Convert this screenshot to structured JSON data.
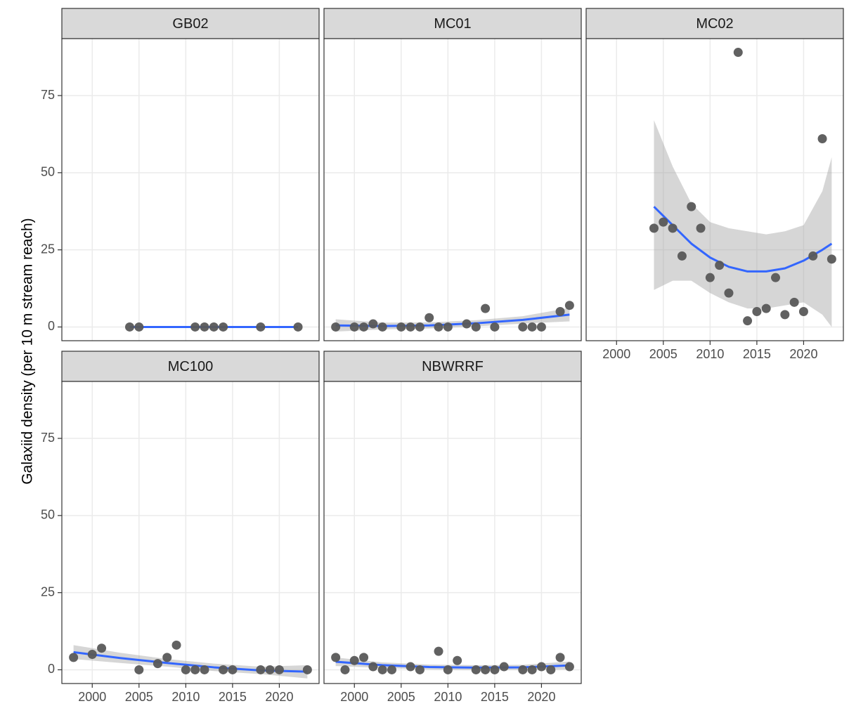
{
  "y_axis_title": "Galaxiid density (per 10 m stream reach)",
  "chart_data": [
    {
      "type": "scatter",
      "title": "GB02",
      "point_color": "#595959",
      "smooth_color": "#3366ff",
      "ribbon_color": "#999999",
      "grid": true,
      "x": [
        2004,
        2005,
        2011,
        2012,
        2013,
        2014,
        2018,
        2022
      ],
      "values": [
        0,
        0,
        0,
        0,
        0,
        0,
        0,
        0
      ],
      "smooth": {
        "x": [
          2004,
          2010,
          2016,
          2022
        ],
        "values": [
          0,
          0,
          0,
          0
        ]
      },
      "xlim": [
        1996.75,
        2024.25
      ],
      "ylim": [
        -4.45,
        93.45
      ],
      "xticks": [
        2000,
        2005,
        2010,
        2015,
        2020
      ],
      "yticks": [
        0,
        25,
        50,
        75
      ]
    },
    {
      "type": "scatter",
      "title": "MC01",
      "point_color": "#595959",
      "smooth_color": "#3366ff",
      "ribbon_color": "#999999",
      "grid": true,
      "x": [
        1998,
        2000,
        2001,
        2002,
        2003,
        2005,
        2006,
        2007,
        2008,
        2009,
        2010,
        2012,
        2013,
        2014,
        2015,
        2018,
        2019,
        2020,
        2022,
        2023
      ],
      "values": [
        0,
        0,
        0,
        1,
        0,
        0,
        0,
        0,
        3,
        0,
        0,
        1,
        0,
        6,
        0,
        0,
        0,
        0,
        5,
        7
      ],
      "smooth": {
        "x": [
          1998,
          2003,
          2008,
          2013,
          2018,
          2023
        ],
        "values": [
          0.5,
          0.3,
          0.5,
          1.2,
          2.3,
          4
        ],
        "lower": [
          -1.5,
          -0.8,
          -0.5,
          0.2,
          1.1,
          1.8
        ],
        "upper": [
          2.5,
          1.4,
          1.5,
          2.2,
          3.5,
          6.2
        ]
      },
      "xlim": [
        1996.75,
        2024.25
      ],
      "ylim": [
        -4.45,
        93.45
      ],
      "xticks": [
        2000,
        2005,
        2010,
        2015,
        2020
      ],
      "yticks": [
        0,
        25,
        50,
        75
      ]
    },
    {
      "type": "scatter",
      "title": "MC02",
      "point_color": "#595959",
      "smooth_color": "#3366ff",
      "ribbon_color": "#999999",
      "grid": true,
      "x": [
        2004,
        2005,
        2006,
        2007,
        2008,
        2009,
        2010,
        2011,
        2012,
        2013,
        2014,
        2015,
        2016,
        2017,
        2018,
        2019,
        2020,
        2021,
        2022,
        2023
      ],
      "values": [
        32,
        34,
        32,
        23,
        39,
        32,
        16,
        20,
        11,
        89,
        2,
        5,
        6,
        16,
        4,
        8,
        5,
        23,
        61,
        22
      ],
      "smooth": {
        "x": [
          2004,
          2006,
          2008,
          2010,
          2012,
          2014,
          2016,
          2018,
          2020,
          2022,
          2023
        ],
        "values": [
          39,
          33,
          27,
          22.5,
          19.5,
          18,
          18,
          19,
          21.5,
          25,
          27
        ],
        "lower": [
          12,
          15,
          15,
          11,
          8,
          6,
          6,
          7,
          8,
          4,
          0
        ],
        "upper": [
          67,
          52,
          40,
          34,
          32,
          31,
          30,
          31,
          33,
          44,
          55
        ]
      },
      "xlim": [
        1996.75,
        2024.25
      ],
      "ylim": [
        -4.45,
        93.45
      ],
      "xticks": [
        2000,
        2005,
        2010,
        2015,
        2020
      ],
      "yticks": [
        0,
        25,
        50,
        75
      ]
    },
    {
      "type": "scatter",
      "title": "MC100",
      "point_color": "#595959",
      "smooth_color": "#3366ff",
      "ribbon_color": "#999999",
      "grid": true,
      "x": [
        1998,
        2000,
        2001,
        2005,
        2007,
        2008,
        2009,
        2010,
        2011,
        2012,
        2014,
        2015,
        2018,
        2019,
        2020,
        2023
      ],
      "values": [
        4,
        5,
        7,
        0,
        2,
        4,
        8,
        0,
        0,
        0,
        0,
        0,
        0,
        0,
        0,
        0
      ],
      "smooth": {
        "x": [
          1998,
          2003,
          2008,
          2013,
          2018,
          2023
        ],
        "values": [
          5.7,
          3.8,
          2.2,
          0.8,
          -0.2,
          -0.6
        ],
        "lower": [
          3.5,
          2.2,
          1,
          -0.4,
          -1.4,
          -2.8
        ],
        "upper": [
          8,
          5.5,
          3.5,
          2,
          1,
          1.5
        ]
      },
      "xlim": [
        1996.75,
        2024.25
      ],
      "ylim": [
        -4.45,
        93.45
      ],
      "xticks": [
        2000,
        2005,
        2010,
        2015,
        2020
      ],
      "yticks": [
        0,
        25,
        50,
        75
      ]
    },
    {
      "type": "scatter",
      "title": "NBWRRF",
      "point_color": "#595959",
      "smooth_color": "#3366ff",
      "ribbon_color": "#999999",
      "grid": true,
      "x": [
        1998,
        1999,
        2000,
        2001,
        2002,
        2003,
        2004,
        2006,
        2007,
        2009,
        2010,
        2011,
        2013,
        2014,
        2015,
        2016,
        2018,
        2019,
        2020,
        2021,
        2022,
        2023
      ],
      "values": [
        4,
        0,
        3,
        4,
        1,
        0,
        0,
        1,
        0,
        6,
        0,
        3,
        0,
        0,
        0,
        1,
        0,
        0,
        1,
        0,
        4,
        1
      ],
      "smooth": {
        "x": [
          1998,
          2003,
          2008,
          2013,
          2018,
          2023
        ],
        "values": [
          2.6,
          1.5,
          0.9,
          0.7,
          0.8,
          1.4
        ],
        "lower": [
          1.2,
          0.6,
          0.1,
          -0.1,
          0,
          0.1
        ],
        "upper": [
          4,
          2.4,
          1.7,
          1.5,
          1.6,
          2.7
        ]
      },
      "xlim": [
        1996.75,
        2024.25
      ],
      "ylim": [
        -4.45,
        93.45
      ],
      "xticks": [
        2000,
        2005,
        2010,
        2015,
        2020
      ],
      "yticks": [
        0,
        25,
        50,
        75
      ]
    }
  ]
}
